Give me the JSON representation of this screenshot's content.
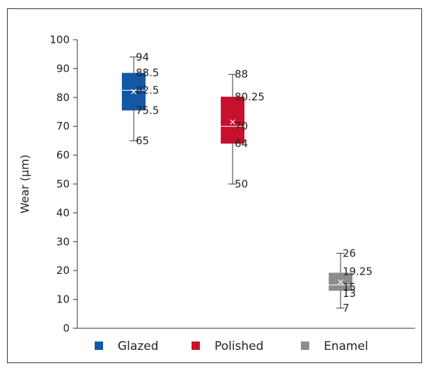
{
  "chart_data": {
    "type": "box",
    "ylabel": "Wear (μm)",
    "ylim": [
      0,
      100
    ],
    "yticks": [
      0,
      10,
      20,
      30,
      40,
      50,
      60,
      70,
      80,
      90,
      100
    ],
    "grid": false,
    "legend_position": "bottom",
    "series": [
      {
        "name": "Glazed",
        "color": "#1457a5",
        "min": 65,
        "q1": 75.5,
        "median": 82.5,
        "q3": 88.5,
        "max": 94,
        "mean": 82,
        "labels": {
          "max": "94",
          "q3": "88.5",
          "median": "82.5",
          "q1": "75.5",
          "min": "65"
        }
      },
      {
        "name": "Polished",
        "color": "#c8102e",
        "min": 50,
        "q1": 64,
        "median": 70,
        "q3": 80.25,
        "max": 88,
        "mean": 71.5,
        "labels": {
          "max": "88",
          "q3": "80.25",
          "median": "70",
          "q1": "64",
          "min": "50"
        }
      },
      {
        "name": "Enamel",
        "color": "#8c8c8e",
        "min": 7,
        "q1": 13,
        "median": 15,
        "q3": 19.25,
        "max": 26,
        "mean": 16,
        "labels": {
          "max": "26",
          "q3": "19.25",
          "median": "15",
          "q1": "13",
          "min": "7"
        }
      }
    ]
  }
}
